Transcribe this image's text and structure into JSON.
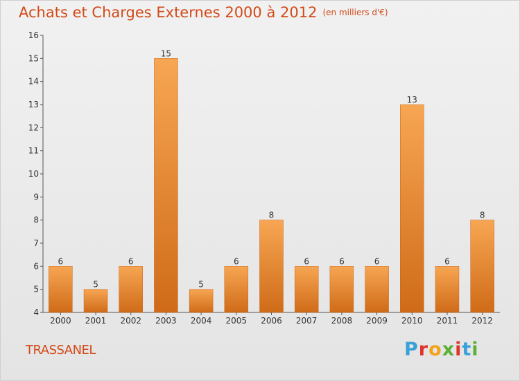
{
  "title": "Achats et Charges Externes 2000 à 2012",
  "subtitle": "(en milliers d'€)",
  "commune": "TRASSANEL",
  "logo": {
    "text": "Proxiti",
    "colors": [
      "#3aa0d8",
      "#e0342e",
      "#f2a21b",
      "#5ab134",
      "#e0342e",
      "#3aa0d8",
      "#5ab134"
    ]
  },
  "colors": {
    "title": "#d24a18",
    "bar_light": "#f7a653",
    "bar_dark": "#cf6b18",
    "text": "#333333"
  },
  "chart_data": {
    "type": "bar",
    "categories": [
      "2000",
      "2001",
      "2002",
      "2003",
      "2004",
      "2005",
      "2006",
      "2007",
      "2008",
      "2009",
      "2010",
      "2011",
      "2012"
    ],
    "values": [
      6,
      5,
      6,
      15,
      5,
      6,
      8,
      6,
      6,
      6,
      13,
      6,
      8
    ],
    "ylim": [
      4,
      16
    ],
    "yticks": [
      4,
      5,
      6,
      7,
      8,
      9,
      10,
      11,
      12,
      13,
      14,
      15,
      16
    ],
    "grid": false,
    "legend": "none",
    "xlabel": "",
    "ylabel": ""
  }
}
